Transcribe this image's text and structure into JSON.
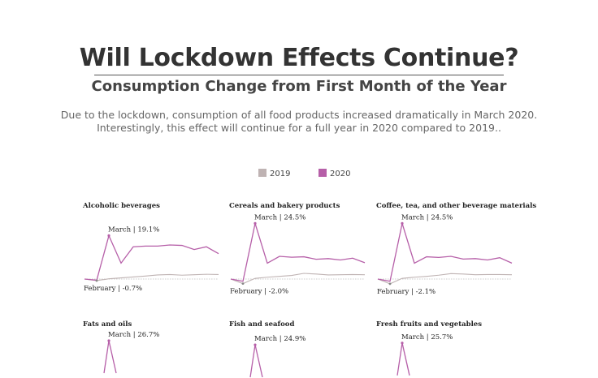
{
  "header": {
    "title": "Will Lockdown Effects Continue?",
    "subtitle": "Consumption Change from First Month of the Year",
    "description_line1": "Due to the lockdown, consumption of all food products increased dramatically in March 2020.",
    "description_line2": "Interestingly, this effect will continue for a full year in 2020 compared to 2019.."
  },
  "legend": [
    {
      "label": "2019",
      "color": "#bfb3b3"
    },
    {
      "label": "2020",
      "color": "#b65fa8"
    }
  ],
  "chart_data": [
    {
      "type": "line",
      "title": "Alcoholic beverages",
      "x": [
        1,
        2,
        3,
        4,
        5,
        6,
        7,
        8,
        9,
        10,
        11,
        12
      ],
      "series": [
        {
          "name": "2019",
          "values": [
            0,
            -0.7,
            0.1,
            0.5,
            0.9,
            1.3,
            1.8,
            2.0,
            1.7,
            1.9,
            2.1,
            2.0
          ]
        },
        {
          "name": "2020",
          "values": [
            0,
            -0.5,
            19.1,
            7.0,
            14.2,
            14.5,
            14.5,
            15.0,
            14.8,
            13.0,
            14.2,
            11.2
          ]
        }
      ],
      "annotations": [
        {
          "text": "March | 19.1%",
          "x": 3,
          "series": "2020"
        },
        {
          "text": "February | -0.7%",
          "x": 2,
          "series": "2019"
        }
      ],
      "ylim": [
        -3,
        27
      ]
    },
    {
      "type": "line",
      "title": "Cereals and bakery products",
      "x": [
        1,
        2,
        3,
        4,
        5,
        6,
        7,
        8,
        9,
        10,
        11,
        12
      ],
      "series": [
        {
          "name": "2019",
          "values": [
            0,
            -2.0,
            0.3,
            0.8,
            1.2,
            1.6,
            2.5,
            2.2,
            1.8,
            1.9,
            2.0,
            1.9
          ]
        },
        {
          "name": "2020",
          "values": [
            0,
            -1.0,
            24.5,
            7.0,
            10.0,
            9.6,
            9.8,
            8.7,
            9.0,
            8.4,
            9.2,
            7.2
          ]
        }
      ],
      "annotations": [
        {
          "text": "March | 24.5%",
          "x": 3,
          "series": "2020"
        },
        {
          "text": "February | -2.0%",
          "x": 2,
          "series": "2019"
        }
      ],
      "ylim": [
        -3,
        27
      ]
    },
    {
      "type": "line",
      "title": "Coffee, tea, and other beverage materials",
      "x": [
        1,
        2,
        3,
        4,
        5,
        6,
        7,
        8,
        9,
        10,
        11,
        12
      ],
      "series": [
        {
          "name": "2019",
          "values": [
            0,
            -2.1,
            0.3,
            0.8,
            1.2,
            1.7,
            2.4,
            2.2,
            1.9,
            2.0,
            2.0,
            1.9
          ]
        },
        {
          "name": "2020",
          "values": [
            0,
            -1.0,
            24.5,
            7.0,
            9.8,
            9.5,
            10.0,
            8.8,
            9.0,
            8.4,
            9.4,
            7.0
          ]
        }
      ],
      "annotations": [
        {
          "text": "March | 24.5%",
          "x": 3,
          "series": "2020"
        },
        {
          "text": "February | -2.1%",
          "x": 2,
          "series": "2019"
        }
      ],
      "ylim": [
        -3,
        27
      ]
    },
    {
      "type": "line",
      "title": "Fats and oils",
      "x": [
        1,
        2,
        3
      ],
      "series": [
        {
          "name": "2020",
          "values": [
            null,
            null,
            26.7
          ]
        }
      ],
      "annotations": [
        {
          "text": "March | 26.7%",
          "x": 3,
          "series": "2020"
        }
      ],
      "ylim": [
        -3,
        27
      ]
    },
    {
      "type": "line",
      "title": "Fish and seafood",
      "x": [
        1,
        2,
        3
      ],
      "series": [
        {
          "name": "2020",
          "values": [
            null,
            null,
            24.9
          ]
        }
      ],
      "annotations": [
        {
          "text": "March | 24.9%",
          "x": 3,
          "series": "2020"
        }
      ],
      "ylim": [
        -3,
        27
      ]
    },
    {
      "type": "line",
      "title": "Fresh fruits and vegetables",
      "x": [
        1,
        2,
        3
      ],
      "series": [
        {
          "name": "2020",
          "values": [
            null,
            null,
            25.7
          ]
        }
      ],
      "annotations": [
        {
          "text": "March | 25.7%",
          "x": 3,
          "series": "2020"
        }
      ],
      "ylim": [
        -3,
        27
      ]
    }
  ]
}
